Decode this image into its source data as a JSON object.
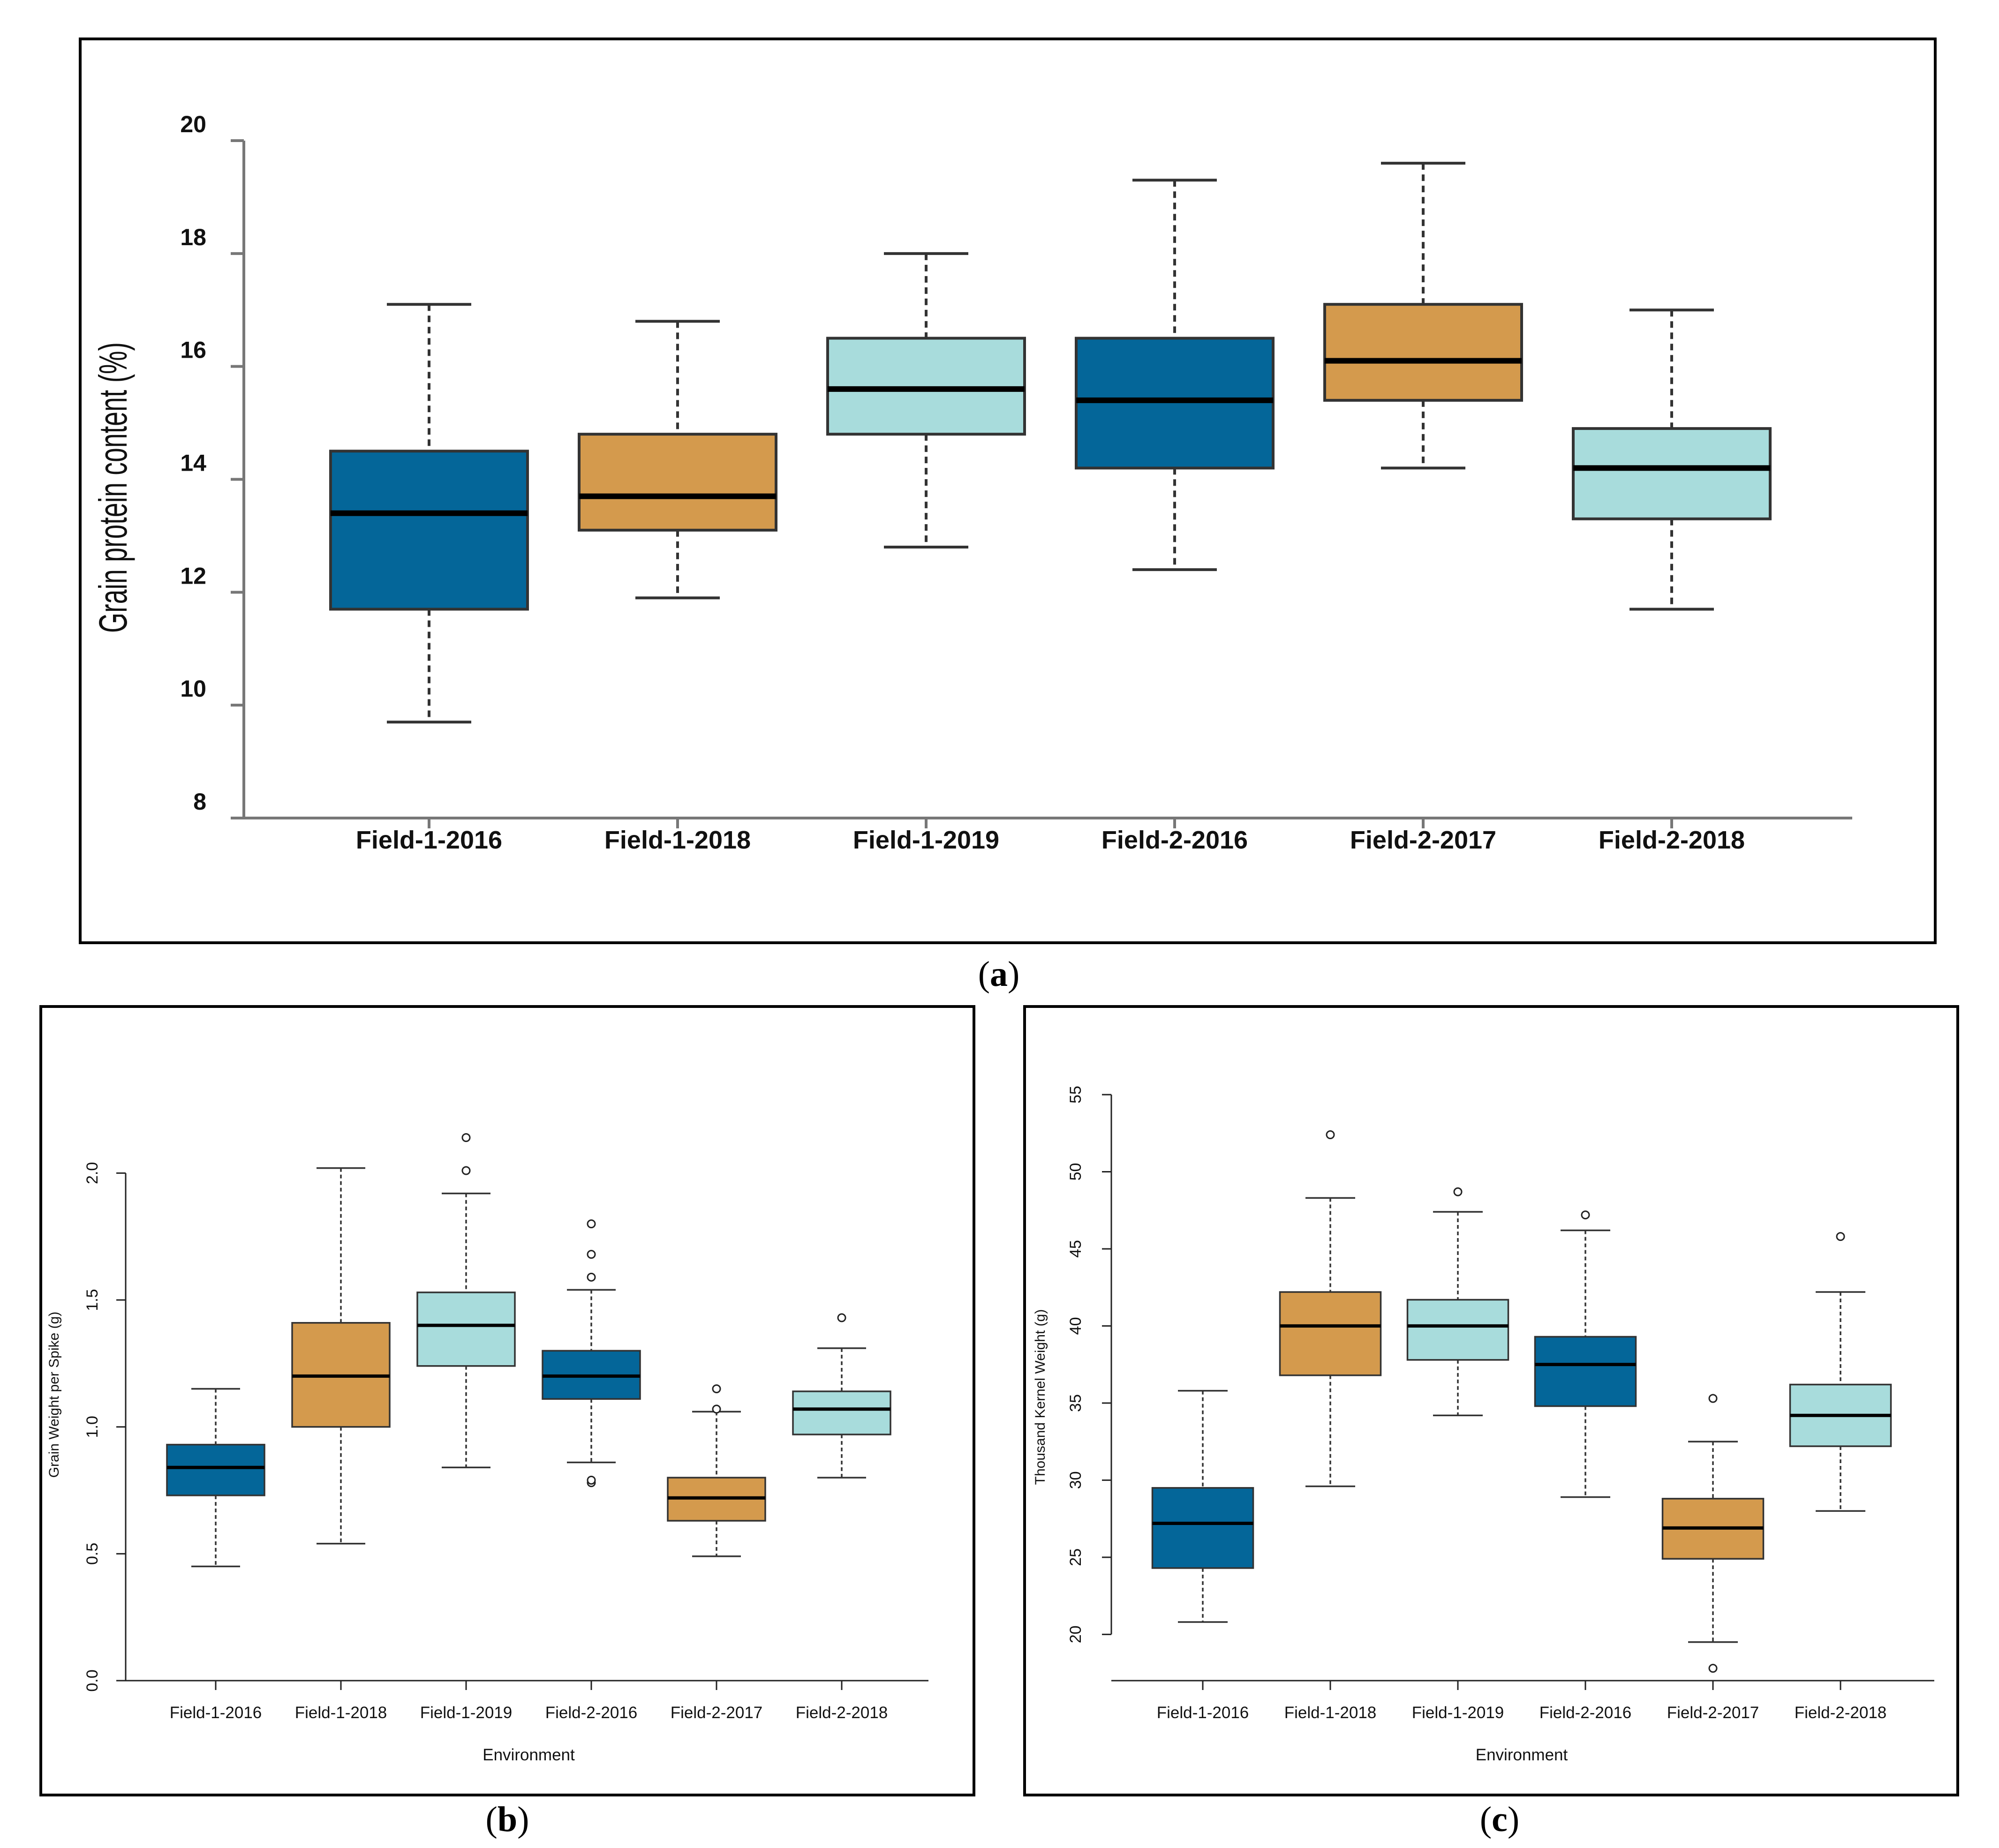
{
  "colors": {
    "blue": "#046699",
    "orange": "#d49a4d",
    "cyan": "#a8dcdc",
    "stroke": "#1a1a1a"
  },
  "captions": {
    "a": "a",
    "b": "b",
    "c": "c"
  },
  "chart_data": [
    {
      "type": "box",
      "panel": "a",
      "title": "",
      "xlabel": "",
      "ylabel": "Grain protein content (%)",
      "ylim": [
        8,
        20
      ],
      "yticks": [
        "8",
        "10",
        "12",
        "14",
        "16",
        "18",
        "20"
      ],
      "categories": [
        "Field-1-2016",
        "Field-1-2018",
        "Field-1-2019",
        "Field-2-2016",
        "Field-2-2017",
        "Field-2-2018"
      ],
      "fills": [
        "blue",
        "orange",
        "cyan",
        "blue",
        "orange",
        "cyan"
      ],
      "boxes": [
        {
          "whisker_low": 9.7,
          "q1": 11.7,
          "median": 13.4,
          "q3": 14.5,
          "whisker_high": 17.1,
          "outliers": []
        },
        {
          "whisker_low": 11.9,
          "q1": 13.1,
          "median": 13.7,
          "q3": 14.8,
          "whisker_high": 16.8,
          "outliers": []
        },
        {
          "whisker_low": 12.8,
          "q1": 14.8,
          "median": 15.6,
          "q3": 16.5,
          "whisker_high": 18.0,
          "outliers": []
        },
        {
          "whisker_low": 12.4,
          "q1": 14.2,
          "median": 15.4,
          "q3": 16.5,
          "whisker_high": 19.3,
          "outliers": []
        },
        {
          "whisker_low": 14.2,
          "q1": 15.4,
          "median": 16.1,
          "q3": 17.1,
          "whisker_high": 19.6,
          "outliers": []
        },
        {
          "whisker_low": 11.7,
          "q1": 13.3,
          "median": 14.2,
          "q3": 14.9,
          "whisker_high": 17.0,
          "outliers": []
        }
      ]
    },
    {
      "type": "box",
      "panel": "b",
      "title": "",
      "xlabel": "Environment",
      "ylabel": "Grain Weight per Spike (g)",
      "ylim": [
        0.0,
        2.3
      ],
      "yticks": [
        "0.0",
        "0.5",
        "1.0",
        "1.5",
        "2.0"
      ],
      "categories": [
        "Field-1-2016",
        "Field-1-2018",
        "Field-1-2019",
        "Field-2-2016",
        "Field-2-2017",
        "Field-2-2018"
      ],
      "fills": [
        "blue",
        "orange",
        "cyan",
        "blue",
        "orange",
        "cyan"
      ],
      "boxes": [
        {
          "whisker_low": 0.45,
          "q1": 0.73,
          "median": 0.84,
          "q3": 0.93,
          "whisker_high": 1.15,
          "outliers": []
        },
        {
          "whisker_low": 0.54,
          "q1": 1.0,
          "median": 1.2,
          "q3": 1.41,
          "whisker_high": 2.02,
          "outliers": []
        },
        {
          "whisker_low": 0.84,
          "q1": 1.24,
          "median": 1.4,
          "q3": 1.53,
          "whisker_high": 1.92,
          "outliers": [
            2.01,
            2.14
          ]
        },
        {
          "whisker_low": 0.86,
          "q1": 1.11,
          "median": 1.2,
          "q3": 1.3,
          "whisker_high": 1.54,
          "outliers": [
            0.78,
            0.79,
            1.59,
            1.68,
            1.8
          ]
        },
        {
          "whisker_low": 0.49,
          "q1": 0.63,
          "median": 0.72,
          "q3": 0.8,
          "whisker_high": 1.06,
          "outliers": [
            1.07,
            1.15
          ]
        },
        {
          "whisker_low": 0.8,
          "q1": 0.97,
          "median": 1.07,
          "q3": 1.14,
          "whisker_high": 1.31,
          "outliers": [
            1.43
          ]
        }
      ]
    },
    {
      "type": "box",
      "panel": "c",
      "title": "",
      "xlabel": "Environment",
      "ylabel": "Thousand Kernel Weight (g)",
      "ylim": [
        17,
        55
      ],
      "yticks": [
        "20",
        "25",
        "30",
        "35",
        "40",
        "45",
        "50",
        "55"
      ],
      "categories": [
        "Field-1-2016",
        "Field-1-2018",
        "Field-1-2019",
        "Field-2-2016",
        "Field-2-2017",
        "Field-2-2018"
      ],
      "fills": [
        "blue",
        "orange",
        "cyan",
        "blue",
        "orange",
        "cyan"
      ],
      "boxes": [
        {
          "whisker_low": 20.8,
          "q1": 24.3,
          "median": 27.2,
          "q3": 29.5,
          "whisker_high": 35.8,
          "outliers": []
        },
        {
          "whisker_low": 29.6,
          "q1": 36.8,
          "median": 40.0,
          "q3": 42.2,
          "whisker_high": 48.3,
          "outliers": [
            52.4
          ]
        },
        {
          "whisker_low": 34.2,
          "q1": 37.8,
          "median": 40.0,
          "q3": 41.7,
          "whisker_high": 47.4,
          "outliers": [
            48.7
          ]
        },
        {
          "whisker_low": 28.9,
          "q1": 34.8,
          "median": 37.5,
          "q3": 39.3,
          "whisker_high": 46.2,
          "outliers": [
            47.2
          ]
        },
        {
          "whisker_low": 19.5,
          "q1": 24.9,
          "median": 26.9,
          "q3": 28.8,
          "whisker_high": 32.5,
          "outliers": [
            17.8,
            35.3
          ]
        },
        {
          "whisker_low": 28.0,
          "q1": 32.2,
          "median": 34.2,
          "q3": 36.2,
          "whisker_high": 42.2,
          "outliers": [
            45.8
          ]
        }
      ]
    }
  ]
}
